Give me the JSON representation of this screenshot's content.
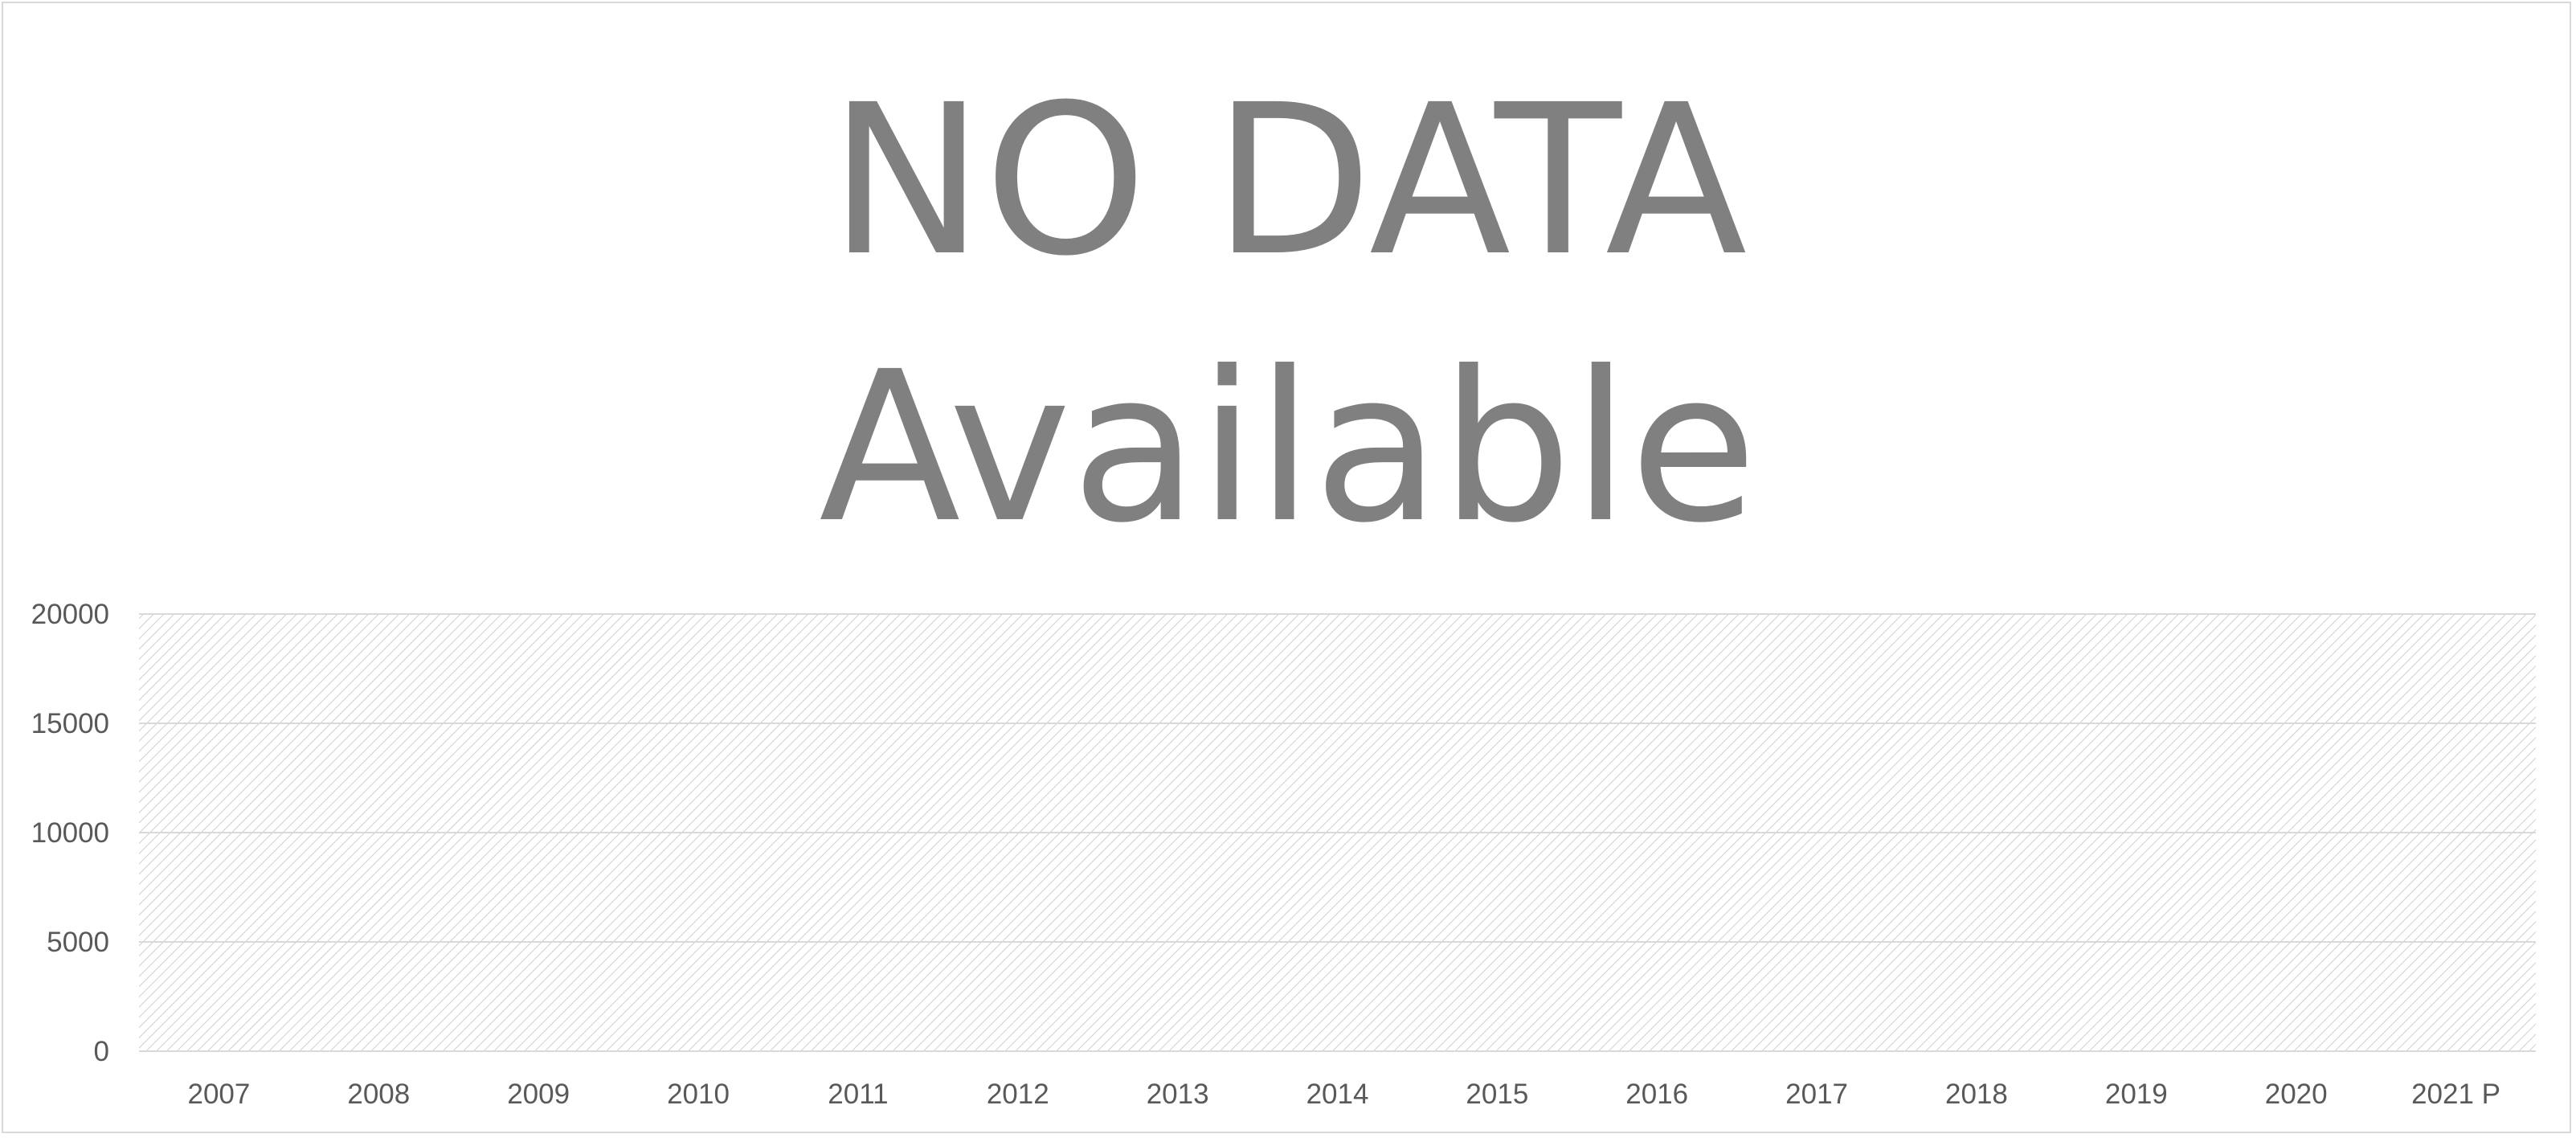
{
  "title_lines": [
    "NO DATA",
    "Available"
  ],
  "colors": {
    "text": "#808080",
    "tick_text": "#595959",
    "gridline": "#d9d9d9",
    "hatch": "#cfcfcf",
    "border": "#d9d9d9"
  },
  "chart_data": {
    "type": "bar",
    "title": "NO DATA Available",
    "categories": [
      "2007",
      "2008",
      "2009",
      "2010",
      "2011",
      "2012",
      "2013",
      "2014",
      "2015",
      "2016",
      "2017",
      "2018",
      "2019",
      "2020",
      "2021 P"
    ],
    "series": [],
    "y_ticks": [
      "20000",
      "15000",
      "10000",
      "5000",
      "0"
    ],
    "ylim": [
      0,
      20000
    ],
    "xlabel": "",
    "ylabel": "",
    "grid": true,
    "legend": "none",
    "plot_area_fill": "diagonal-hatch"
  }
}
